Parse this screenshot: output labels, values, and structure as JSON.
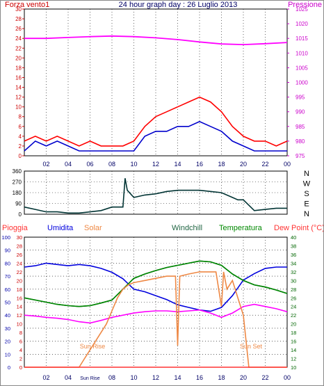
{
  "colors": {
    "wind": "#ff0000",
    "gust": "#0000cc",
    "pressure": "#ff00ff",
    "direction": "#003333",
    "rain": "#ff3333",
    "humidity": "#0000dd",
    "solar": "#ee8844",
    "windchill": "#226644",
    "temperature": "#008800",
    "dewpoint": "#ff00ff",
    "axis_left": "#cc0000",
    "axis_right_top": "#cc00cc",
    "axis_blue": "#0000aa",
    "axis_green": "#006600",
    "time_axis": "#000066",
    "grid": "#000000"
  },
  "chart_data": [
    {
      "type": "line",
      "title": "24 hour graph day : 26 Luglio 2013",
      "left_label": "Forza vento1",
      "right_label": "Pressione",
      "x_ticks": [
        "02",
        "04",
        "06",
        "08",
        "10",
        "12",
        "14",
        "16",
        "18",
        "20",
        "22",
        "00"
      ],
      "left_ticks": [
        "0",
        "2",
        "4",
        "6",
        "8",
        "10",
        "12",
        "14",
        "16",
        "18",
        "20",
        "22",
        "24",
        "26",
        "28",
        "30"
      ],
      "right_ticks": [
        "975",
        "980",
        "985",
        "990",
        "995",
        "1000",
        "1005",
        "1010",
        "1015",
        "1020",
        "1025"
      ],
      "left_ylim": [
        0,
        30
      ],
      "right_ylim": [
        975,
        1025
      ],
      "series": [
        {
          "name": "Forza vento1",
          "axis": "left",
          "color": "wind",
          "x": [
            0,
            1,
            2,
            3,
            4,
            5,
            6,
            7,
            8,
            9,
            10,
            11,
            12,
            13,
            14,
            15,
            16,
            17,
            18,
            19,
            20,
            21,
            22,
            23,
            24
          ],
          "values": [
            3,
            4,
            3,
            4,
            3,
            2,
            3,
            2,
            2,
            2,
            3,
            6,
            8,
            9,
            10,
            11,
            12,
            11,
            9,
            6,
            4,
            3,
            3,
            2,
            3
          ]
        },
        {
          "name": "",
          "axis": "left",
          "color": "gust",
          "x": [
            0,
            1,
            2,
            3,
            4,
            5,
            6,
            7,
            8,
            9,
            10,
            11,
            12,
            13,
            14,
            15,
            16,
            17,
            18,
            19,
            20,
            21,
            22,
            23,
            24
          ],
          "values": [
            1,
            3,
            2,
            3,
            2,
            1,
            1,
            1,
            1,
            1,
            1,
            4,
            5,
            5,
            6,
            6,
            7,
            6,
            5,
            3,
            2,
            1,
            1,
            1,
            1
          ]
        },
        {
          "name": "Pressione",
          "axis": "right",
          "color": "pressure",
          "x": [
            0,
            2,
            4,
            6,
            8,
            10,
            12,
            14,
            16,
            18,
            20,
            22,
            24
          ],
          "values": [
            1015,
            1015,
            1015.3,
            1015.6,
            1015.8,
            1015.6,
            1015.2,
            1014.6,
            1013.8,
            1013.1,
            1012.9,
            1013.2,
            1013.6
          ]
        }
      ]
    },
    {
      "type": "line",
      "y_ticks": [
        "0",
        "90",
        "180",
        "270",
        "360"
      ],
      "ylim": [
        0,
        360
      ],
      "direction_labels": [
        "N",
        "W",
        "S",
        "E",
        "N"
      ],
      "series": [
        {
          "name": "",
          "color": "direction",
          "x": [
            0,
            1,
            2,
            3,
            4,
            5,
            6,
            7,
            8,
            9,
            9.2,
            9.4,
            10,
            11,
            12,
            13,
            14,
            15,
            16,
            17,
            18,
            19,
            19.5,
            20,
            21,
            22,
            23,
            24
          ],
          "values": [
            60,
            40,
            20,
            20,
            10,
            10,
            20,
            30,
            60,
            60,
            300,
            200,
            140,
            160,
            170,
            190,
            200,
            200,
            200,
            190,
            180,
            140,
            120,
            120,
            30,
            40,
            50,
            50
          ]
        }
      ]
    },
    {
      "type": "line",
      "labels": [
        "Pioggia",
        "Umidita",
        "Solar",
        "Windchill",
        "Temperatura",
        "Dew Point (°C)"
      ],
      "left_ticks_humidity": [
        "0",
        "10",
        "20",
        "30",
        "40",
        "50",
        "60",
        "70",
        "80",
        "90",
        "100"
      ],
      "left_ticks_rain": [
        "0",
        "2",
        "4",
        "6",
        "8",
        "10",
        "12",
        "14",
        "16",
        "18",
        "20",
        "22",
        "24",
        "26",
        "28",
        "30"
      ],
      "right_ticks": [
        "10",
        "12",
        "14",
        "16",
        "18",
        "20",
        "22",
        "24",
        "26",
        "28",
        "30",
        "32",
        "34",
        "36",
        "38",
        "40"
      ],
      "humidity_ylim": [
        0,
        100
      ],
      "temp_ylim": [
        10,
        40
      ],
      "x_ticks": [
        "02",
        "04",
        "Sun Rise",
        "08",
        "10",
        "12",
        "14",
        "16",
        "18",
        "20",
        "22",
        "00"
      ],
      "annotations": [
        "Sun Rise",
        "Sun Set"
      ],
      "series": [
        {
          "name": "Umidita",
          "axis": "humidity",
          "color": "humidity",
          "x": [
            0,
            1,
            2,
            3,
            4,
            5,
            6,
            7,
            8,
            9,
            10,
            11,
            12,
            13,
            14,
            15,
            16,
            17,
            18,
            19,
            20,
            21,
            22,
            23,
            24
          ],
          "values": [
            77,
            78,
            80,
            79,
            78,
            79,
            78,
            76,
            73,
            68,
            60,
            58,
            55,
            52,
            48,
            46,
            44,
            43,
            46,
            55,
            67,
            72,
            76,
            77,
            77
          ]
        },
        {
          "name": "Windchill",
          "axis": "temp",
          "color": "windchill",
          "x": [
            0,
            1,
            2,
            3,
            4,
            5,
            6,
            7,
            8,
            9,
            10,
            11,
            12,
            13,
            14,
            15,
            16,
            17,
            18,
            19,
            20,
            21,
            22,
            23,
            24
          ],
          "values": [
            26,
            25.5,
            25,
            24.5,
            24.2,
            24,
            24.2,
            24.8,
            25.5,
            28,
            30.5,
            31.5,
            32.3,
            33,
            33.5,
            34,
            34.5,
            34.3,
            33.5,
            31.5,
            30,
            29,
            28.5,
            27.8,
            27
          ]
        },
        {
          "name": "Temperatura",
          "axis": "temp",
          "color": "temperature",
          "x": [
            0,
            1,
            2,
            3,
            4,
            5,
            6,
            7,
            8,
            9,
            10,
            11,
            12,
            13,
            14,
            15,
            16,
            17,
            18,
            19,
            20,
            21,
            22,
            23,
            24
          ],
          "values": [
            26,
            25.5,
            25,
            24.5,
            24.2,
            24,
            24.2,
            24.8,
            25.5,
            28,
            30.5,
            31.5,
            32.3,
            33,
            33.5,
            34,
            34.5,
            34.3,
            33.5,
            31.5,
            30,
            29,
            28.5,
            27.8,
            27
          ]
        },
        {
          "name": "Dew Point (°C)",
          "axis": "temp",
          "color": "dewpoint",
          "x": [
            0,
            1,
            2,
            3,
            4,
            5,
            6,
            7,
            8,
            9,
            10,
            11,
            12,
            13,
            14,
            15,
            16,
            17,
            18,
            19,
            20,
            21,
            22,
            23,
            24
          ],
          "values": [
            22,
            21.8,
            21.5,
            21.3,
            21,
            20.5,
            20.2,
            20.8,
            21.5,
            22,
            22.5,
            22.8,
            23,
            23,
            22.8,
            23,
            23.2,
            22.5,
            21.5,
            22.5,
            24,
            24.5,
            24,
            23.5,
            22.8
          ]
        },
        {
          "name": "Solar",
          "axis": "rain",
          "color": "solar",
          "x": [
            0,
            5,
            5.5,
            6,
            6.5,
            7,
            7.5,
            8,
            8.5,
            9,
            9.5,
            10,
            11,
            12,
            13,
            13.8,
            14,
            14.2,
            15,
            16,
            17,
            17.5,
            18,
            18.2,
            18.5,
            19,
            19.5,
            20,
            20.5,
            21,
            24
          ],
          "values": [
            0,
            0,
            2,
            4,
            6,
            8,
            10,
            13,
            16,
            18,
            19,
            19.5,
            20,
            20.5,
            21,
            21,
            5,
            21,
            21.5,
            22,
            22,
            22,
            14,
            22,
            18,
            20,
            16,
            12,
            0,
            0,
            0
          ]
        },
        {
          "name": "Pioggia",
          "axis": "rain",
          "color": "rain",
          "x": [
            0,
            24
          ],
          "values": [
            0,
            0
          ]
        }
      ]
    }
  ]
}
